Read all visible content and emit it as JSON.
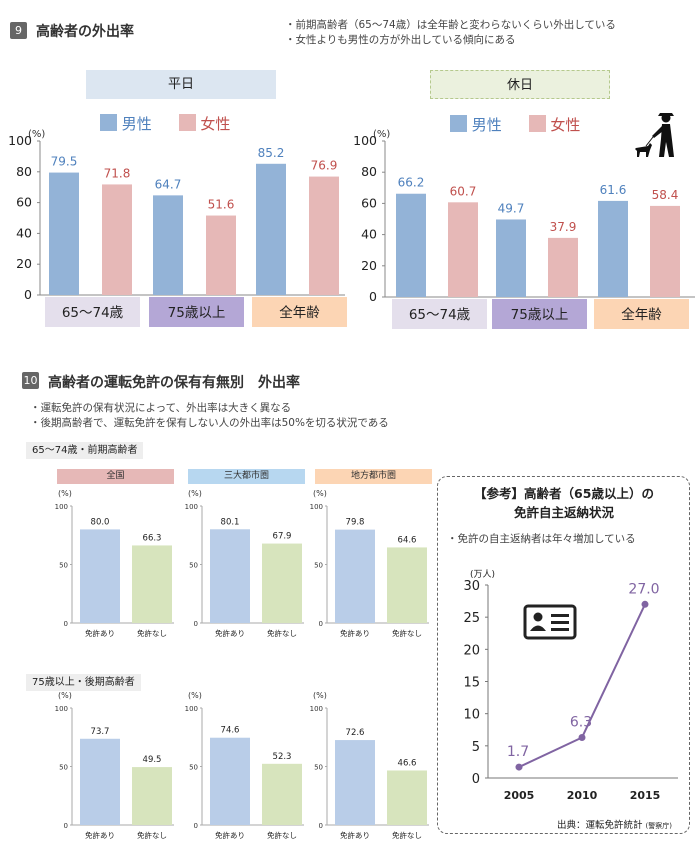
{
  "section9": {
    "number": "9",
    "title": "高齢者の外出率",
    "notes": [
      "・前期高齢者（65〜74歳）は全年齢と変わらないくらい外出している",
      "・女性よりも男性の方が外出している傾向にある"
    ],
    "y_unit": "(%)",
    "legend_male": "男性",
    "legend_female": "女性"
  },
  "section10": {
    "number": "10",
    "title": "高齢者の運転免許の保有有無別　外出率",
    "notes": [
      "・運転免許の保有状況によって、外出率は大きく異なる",
      "・後期高齢者で、運転免許を保有しない人の外出率は50%を切る状況である"
    ],
    "group1_label": "65〜74歳・前期高齢者",
    "group2_label": "75歳以上・後期高齢者",
    "area_labels": [
      "全国",
      "三大都市圏",
      "地方都市圏"
    ]
  },
  "reference": {
    "title_line1": "【参考】高齢者（65歳以上）の",
    "title_line2": "免許自主返納状況",
    "note": "・免許の自主返納者は年々増加している",
    "source": "出典：運転免許統計",
    "source_small": "(警察庁)"
  },
  "colors": {
    "male": "#93b3d7",
    "female": "#e6b8b7",
    "with_license": "#b9cde8",
    "without_license": "#d7e4bd",
    "line": "#8064a2",
    "cat1": "#e4dfec",
    "cat2": "#b4a7d6",
    "cat3": "#fcd5b4"
  },
  "chart_data": [
    {
      "id": "weekday",
      "type": "bar",
      "title": "平日",
      "categories": [
        "65〜74歳",
        "75歳以上",
        "全年齢"
      ],
      "series": [
        {
          "name": "男性",
          "values": [
            79.5,
            64.7,
            85.2
          ]
        },
        {
          "name": "女性",
          "values": [
            71.8,
            51.6,
            76.9
          ]
        }
      ],
      "ylabel": "(%)",
      "ylim": [
        0,
        100
      ],
      "yticks": [
        "0",
        "20",
        "40",
        "60",
        "80",
        "100"
      ]
    },
    {
      "id": "holiday",
      "type": "bar",
      "title": "休日",
      "categories": [
        "65〜74歳",
        "75歳以上",
        "全年齢"
      ],
      "series": [
        {
          "name": "男性",
          "values": [
            66.2,
            49.7,
            61.6
          ]
        },
        {
          "name": "女性",
          "values": [
            60.7,
            37.9,
            58.4
          ]
        }
      ],
      "ylabel": "(%)",
      "ylim": [
        0,
        100
      ],
      "yticks": [
        "0",
        "20",
        "40",
        "60",
        "80",
        "100"
      ]
    },
    {
      "id": "g1_national",
      "type": "bar",
      "title": "全国",
      "categories": [
        "免許あり",
        "免許なし"
      ],
      "values": [
        80.0,
        66.3
      ],
      "value_labels": [
        "80.0",
        "66.3"
      ],
      "ylabel": "(%)",
      "ylim": [
        0,
        100
      ],
      "yticks": [
        "0",
        "50",
        "100"
      ]
    },
    {
      "id": "g1_metro",
      "type": "bar",
      "title": "三大都市圏",
      "categories": [
        "免許あり",
        "免許なし"
      ],
      "values": [
        80.1,
        67.9
      ],
      "value_labels": [
        "80.1",
        "67.9"
      ],
      "ylabel": "(%)",
      "ylim": [
        0,
        100
      ],
      "yticks": [
        "0",
        "50",
        "100"
      ]
    },
    {
      "id": "g1_local",
      "type": "bar",
      "title": "地方都市圏",
      "categories": [
        "免許あり",
        "免許なし"
      ],
      "values": [
        79.8,
        64.6
      ],
      "value_labels": [
        "79.8",
        "64.6"
      ],
      "ylabel": "(%)",
      "ylim": [
        0,
        100
      ],
      "yticks": [
        "0",
        "50",
        "100"
      ]
    },
    {
      "id": "g2_national",
      "type": "bar",
      "categories": [
        "免許あり",
        "免許なし"
      ],
      "values": [
        73.7,
        49.5
      ],
      "value_labels": [
        "73.7",
        "49.5"
      ],
      "ylabel": "(%)",
      "ylim": [
        0,
        100
      ],
      "yticks": [
        "0",
        "50",
        "100"
      ]
    },
    {
      "id": "g2_metro",
      "type": "bar",
      "categories": [
        "免許あり",
        "免許なし"
      ],
      "values": [
        74.6,
        52.3
      ],
      "value_labels": [
        "74.6",
        "52.3"
      ],
      "ylabel": "(%)",
      "ylim": [
        0,
        100
      ],
      "yticks": [
        "0",
        "50",
        "100"
      ]
    },
    {
      "id": "g2_local",
      "type": "bar",
      "categories": [
        "免許あり",
        "免許なし"
      ],
      "values": [
        72.6,
        46.6
      ],
      "value_labels": [
        "72.6",
        "46.6"
      ],
      "ylabel": "(%)",
      "ylim": [
        0,
        100
      ],
      "yticks": [
        "0",
        "50",
        "100"
      ]
    },
    {
      "id": "returns",
      "type": "line",
      "title": "【参考】高齢者（65歳以上）の免許自主返納状況",
      "x": [
        "2005",
        "2010",
        "2015"
      ],
      "series": [
        {
          "values": [
            1.7,
            6.3,
            27.0
          ]
        }
      ],
      "value_labels": [
        "1.7",
        "6.3",
        "27.0"
      ],
      "ylabel": "(万人)",
      "ylim": [
        0,
        30
      ],
      "yticks": [
        "0",
        "5",
        "10",
        "15",
        "20",
        "25",
        "30"
      ]
    }
  ]
}
